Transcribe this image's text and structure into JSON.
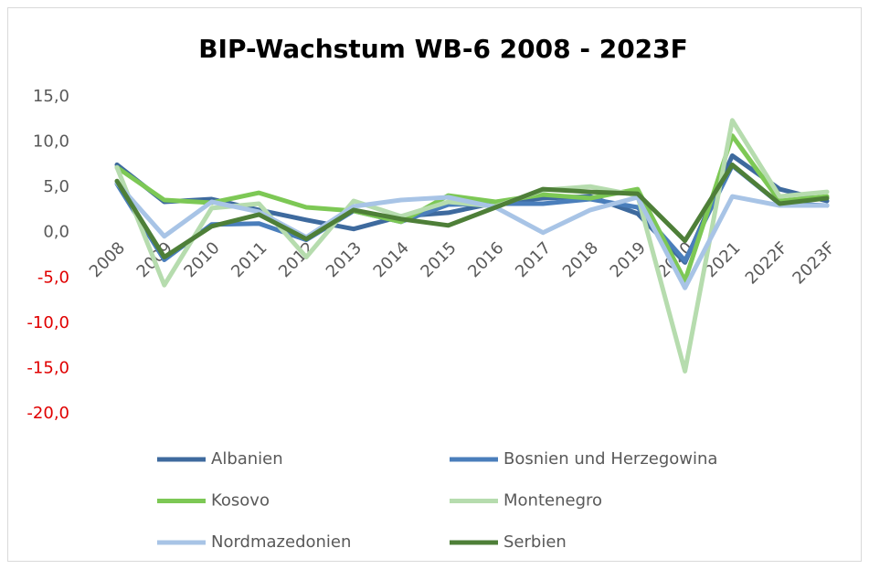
{
  "chart_data": {
    "type": "line",
    "title": "BIP-Wachstum WB-6 2008 - 2023F",
    "categories": [
      "2008",
      "2009",
      "2010",
      "2011",
      "2012",
      "2013",
      "2014",
      "2015",
      "2016",
      "2017",
      "2018",
      "2019",
      "2020",
      "2021",
      "2022F",
      "2023F"
    ],
    "series": [
      {
        "name": "Albanien",
        "color": "#3e6a9e",
        "values": [
          7.5,
          3.4,
          3.7,
          2.5,
          1.4,
          0.4,
          1.8,
          2.2,
          3.3,
          3.8,
          4.0,
          2.1,
          -3.3,
          8.5,
          4.8,
          3.5
        ]
      },
      {
        "name": "Bosnien und Herzegowina",
        "color": "#4a7ebb",
        "values": [
          5.4,
          -3.0,
          0.9,
          1.0,
          -0.8,
          2.4,
          1.2,
          3.1,
          3.2,
          3.2,
          3.7,
          2.8,
          -3.1,
          7.4,
          3.2,
          3.0
        ]
      },
      {
        "name": "Kosovo",
        "color": "#7dc855",
        "values": [
          7.2,
          3.6,
          3.3,
          4.4,
          2.8,
          2.4,
          1.2,
          4.1,
          3.4,
          4.2,
          3.8,
          4.8,
          -5.3,
          10.7,
          3.5,
          4.0
        ]
      },
      {
        "name": "Montenegro",
        "color": "#b6dcae",
        "values": [
          7.2,
          -5.8,
          2.7,
          3.2,
          -2.7,
          3.5,
          1.8,
          3.4,
          2.9,
          4.7,
          5.1,
          4.1,
          -15.3,
          12.4,
          4.0,
          4.5
        ]
      },
      {
        "name": "Nordmazedonien",
        "color": "#a8c4e6",
        "values": [
          5.5,
          -0.4,
          3.4,
          2.3,
          -0.5,
          2.9,
          3.6,
          3.9,
          2.8,
          0.0,
          2.5,
          3.9,
          -6.1,
          4.0,
          3.0,
          3.0
        ]
      },
      {
        "name": "Serbien",
        "color": "#4e7f38",
        "values": [
          5.7,
          -2.7,
          0.7,
          2.0,
          -0.7,
          2.5,
          1.5,
          0.8,
          2.8,
          4.8,
          4.5,
          4.3,
          -0.9,
          7.5,
          3.2,
          3.8
        ]
      }
    ],
    "ylim": [
      -20,
      15
    ],
    "yticks": [
      {
        "value": 15,
        "label": "15,0"
      },
      {
        "value": 10,
        "label": "10,0"
      },
      {
        "value": 5,
        "label": "5,0"
      },
      {
        "value": 0,
        "label": "0,0"
      },
      {
        "value": -5,
        "label": "-5,0"
      },
      {
        "value": -10,
        "label": "-10,0"
      },
      {
        "value": -15,
        "label": "-15,0"
      },
      {
        "value": -20,
        "label": "-20,0"
      }
    ],
    "negative_tick_color": "#e00000",
    "grid": false,
    "legend": "bottom"
  }
}
